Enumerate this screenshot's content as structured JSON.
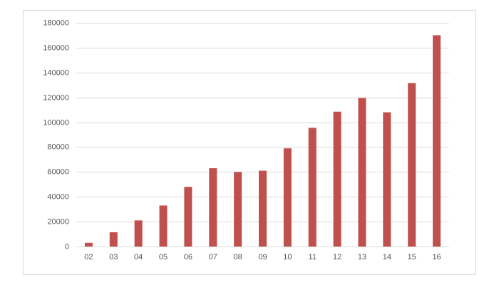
{
  "chart_data": {
    "type": "bar",
    "categories": [
      "02",
      "03",
      "04",
      "05",
      "06",
      "07",
      "08",
      "09",
      "10",
      "11",
      "12",
      "13",
      "14",
      "15",
      "16"
    ],
    "values": [
      3000,
      11500,
      21000,
      33000,
      48000,
      63000,
      60000,
      61000,
      79000,
      95500,
      108500,
      119500,
      108000,
      131500,
      170000
    ],
    "color": "#c0504d",
    "ylim": [
      0,
      180000
    ],
    "yticks": [
      0,
      20000,
      40000,
      60000,
      80000,
      100000,
      120000,
      140000,
      160000,
      180000
    ],
    "grid": true
  }
}
